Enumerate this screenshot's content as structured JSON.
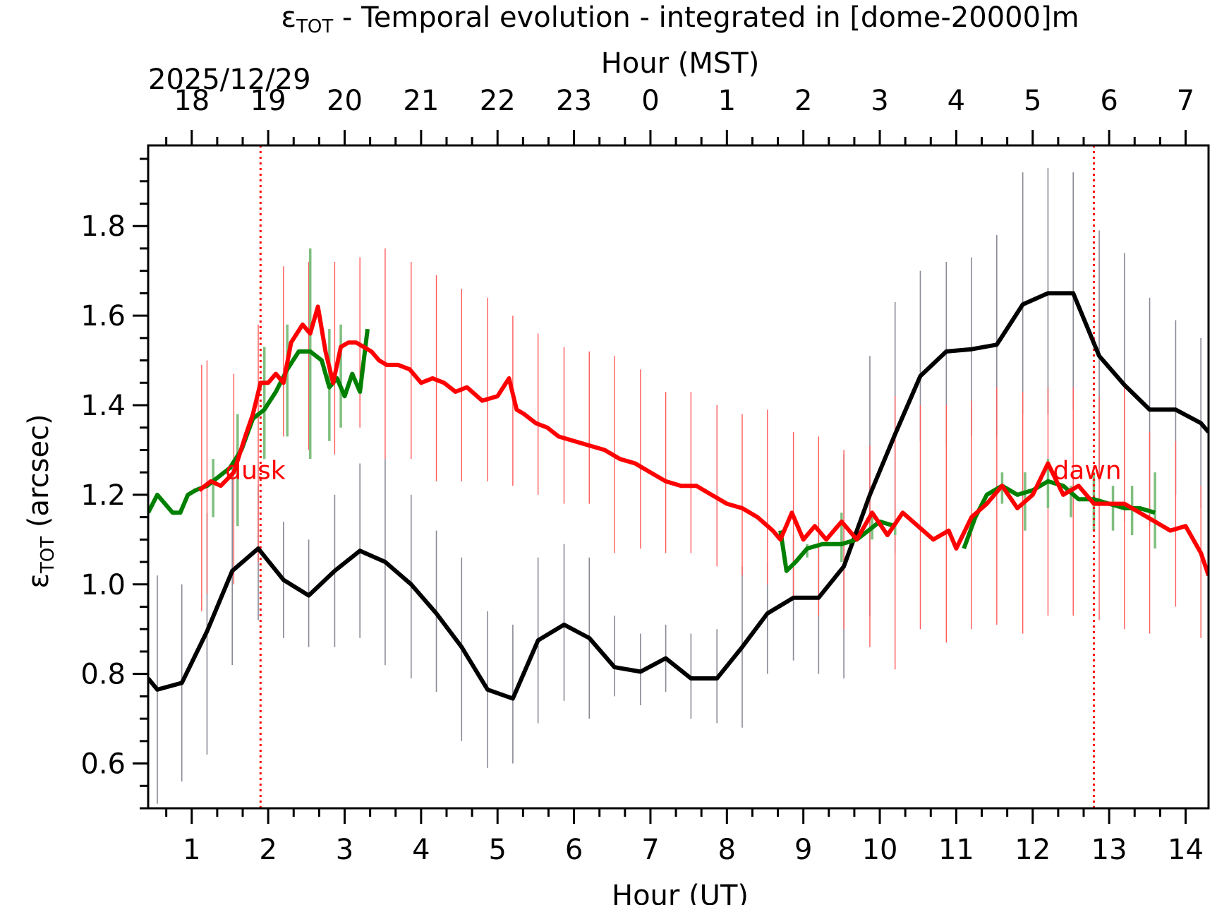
{
  "chart_data": {
    "type": "line",
    "title": {
      "main": "ε",
      "sub": "TOT",
      "rest": " - Temporal evolution - integrated in [dome-20000]m"
    },
    "date_label": "2025/12/29",
    "xlabel": "Hour (UT)",
    "xlabel_top": "Hour (MST)",
    "ylabel": {
      "main": "ε",
      "sub": "TOT",
      "rest": " (arcsec)"
    },
    "xlim": [
      0.43,
      14.3
    ],
    "ylim": [
      0.5,
      1.98
    ],
    "x_ticks": [
      1,
      2,
      3,
      4,
      5,
      6,
      7,
      8,
      9,
      10,
      11,
      12,
      13,
      14
    ],
    "x_tick_labels": [
      "1",
      "2",
      "3",
      "4",
      "5",
      "6",
      "7",
      "8",
      "9",
      "10",
      "11",
      "12",
      "13",
      "14"
    ],
    "top_tick_labels": [
      "18",
      "19",
      "20",
      "21",
      "22",
      "23",
      "0",
      "1",
      "2",
      "3",
      "4",
      "5",
      "6",
      "7"
    ],
    "y_ticks": [
      0.6,
      0.8,
      1.0,
      1.2,
      1.4,
      1.6,
      1.8
    ],
    "y_tick_labels": [
      "0.6",
      "0.8",
      "1.0",
      "1.2",
      "1.4",
      "1.6",
      "1.8"
    ],
    "colors": {
      "black": "#000000",
      "red": "#ff0000",
      "green": "#008000",
      "green_err": "#7fbf7f",
      "red_err": "#ff5a5a",
      "black_err": "#8a8a96"
    },
    "annotations": [
      {
        "text": "dusk",
        "x": 1.9
      },
      {
        "text": "dawn",
        "x": 12.8
      }
    ],
    "series": [
      {
        "name": "black",
        "color": "#000000",
        "x": [
          0.43,
          0.55,
          0.87,
          1.2,
          1.53,
          1.87,
          2.2,
          2.53,
          2.87,
          3.2,
          3.53,
          3.87,
          4.2,
          4.53,
          4.87,
          5.2,
          5.53,
          5.87,
          6.2,
          6.53,
          6.87,
          7.2,
          7.53,
          7.87,
          8.2,
          8.53,
          8.87,
          9.2,
          9.53,
          9.87,
          10.2,
          10.53,
          10.87,
          11.2,
          11.53,
          11.87,
          12.2,
          12.53,
          12.87,
          13.2,
          13.53,
          13.87,
          14.2,
          14.3
        ],
        "values": [
          0.79,
          0.765,
          0.78,
          0.895,
          1.03,
          1.08,
          1.01,
          0.975,
          1.03,
          1.075,
          1.05,
          1.0,
          0.935,
          0.86,
          0.765,
          0.745,
          0.875,
          0.91,
          0.88,
          0.815,
          0.805,
          0.835,
          0.79,
          0.79,
          0.86,
          0.935,
          0.97,
          0.97,
          1.04,
          1.2,
          1.335,
          1.465,
          1.52,
          1.525,
          1.535,
          1.625,
          1.65,
          1.65,
          1.51,
          1.445,
          1.39,
          1.39,
          1.36,
          1.34
        ]
      },
      {
        "name": "red",
        "color": "#ff0000",
        "x": [
          1.1,
          1.25,
          1.38,
          1.55,
          1.7,
          1.8,
          1.9,
          2.0,
          2.1,
          2.2,
          2.3,
          2.45,
          2.55,
          2.65,
          2.75,
          2.85,
          2.95,
          3.05,
          3.15,
          3.25,
          3.35,
          3.45,
          3.55,
          3.7,
          3.85,
          4.0,
          4.15,
          4.3,
          4.45,
          4.6,
          4.8,
          5.0,
          5.15,
          5.25,
          5.35,
          5.5,
          5.65,
          5.8,
          6.0,
          6.2,
          6.4,
          6.6,
          6.8,
          7.0,
          7.2,
          7.4,
          7.6,
          7.8,
          8.0,
          8.2,
          8.4,
          8.6,
          8.7,
          8.85,
          9.0,
          9.15,
          9.3,
          9.5,
          9.7,
          9.9,
          10.1,
          10.3,
          10.5,
          10.7,
          10.9,
          11.0,
          11.2,
          11.4,
          11.6,
          11.8,
          12.0,
          12.2,
          12.4,
          12.6,
          12.8,
          13.0,
          13.2,
          13.4,
          13.6,
          13.8,
          14.0,
          14.2,
          14.3
        ],
        "values": [
          1.21,
          1.23,
          1.22,
          1.25,
          1.33,
          1.38,
          1.45,
          1.45,
          1.47,
          1.45,
          1.54,
          1.58,
          1.56,
          1.62,
          1.52,
          1.45,
          1.53,
          1.54,
          1.54,
          1.53,
          1.52,
          1.5,
          1.49,
          1.49,
          1.48,
          1.45,
          1.46,
          1.45,
          1.43,
          1.44,
          1.41,
          1.42,
          1.46,
          1.39,
          1.38,
          1.36,
          1.35,
          1.33,
          1.32,
          1.31,
          1.3,
          1.28,
          1.27,
          1.25,
          1.23,
          1.22,
          1.22,
          1.2,
          1.18,
          1.17,
          1.15,
          1.12,
          1.1,
          1.16,
          1.1,
          1.13,
          1.1,
          1.14,
          1.1,
          1.16,
          1.11,
          1.16,
          1.13,
          1.1,
          1.12,
          1.08,
          1.15,
          1.18,
          1.22,
          1.17,
          1.2,
          1.27,
          1.2,
          1.22,
          1.18,
          1.18,
          1.18,
          1.16,
          1.14,
          1.12,
          1.13,
          1.07,
          1.02
        ]
      },
      {
        "name": "green",
        "color": "#008000",
        "segments": [
          {
            "x": [
              0.43,
              0.55,
              0.65,
              0.75,
              0.85,
              0.95,
              1.05,
              1.2,
              1.35,
              1.5,
              1.65,
              1.8,
              1.95,
              2.1,
              2.25,
              2.4,
              2.55,
              2.7,
              2.8,
              2.9,
              3.0,
              3.1,
              3.2,
              3.3
            ],
            "values": [
              1.16,
              1.2,
              1.18,
              1.16,
              1.16,
              1.2,
              1.21,
              1.22,
              1.24,
              1.26,
              1.3,
              1.37,
              1.39,
              1.43,
              1.48,
              1.52,
              1.52,
              1.5,
              1.44,
              1.46,
              1.42,
              1.47,
              1.43,
              1.57
            ]
          },
          {
            "x": [
              8.7,
              8.78,
              8.9,
              9.05,
              9.25,
              9.5,
              9.7,
              9.85,
              10.0,
              10.2
            ],
            "values": [
              1.12,
              1.03,
              1.05,
              1.08,
              1.09,
              1.09,
              1.1,
              1.12,
              1.14,
              1.13
            ]
          },
          {
            "x": [
              11.1,
              11.25,
              11.4,
              11.6,
              11.8,
              12.0,
              12.2,
              12.4,
              12.6,
              12.8,
              13.0,
              13.2,
              13.4,
              13.6
            ],
            "values": [
              1.08,
              1.15,
              1.2,
              1.22,
              1.2,
              1.21,
              1.23,
              1.22,
              1.19,
              1.19,
              1.18,
              1.17,
              1.17,
              1.16
            ]
          }
        ]
      }
    ],
    "error_bars": [
      {
        "series": "black",
        "x": [
          0.55,
          0.87,
          1.2,
          1.53,
          1.87,
          2.2,
          2.53,
          2.87,
          3.2,
          3.53,
          3.87,
          4.2,
          4.53,
          4.87,
          5.2,
          5.53,
          5.87,
          6.2,
          6.53,
          6.87,
          7.2,
          7.53,
          7.87,
          8.2,
          8.53,
          8.87,
          9.2,
          9.53,
          9.87,
          10.2,
          10.53,
          10.87,
          11.2,
          11.53,
          11.87,
          12.2,
          12.53,
          12.87,
          13.2,
          13.53,
          13.87,
          14.2
        ],
        "low": [
          0.51,
          0.56,
          0.62,
          0.82,
          0.92,
          0.88,
          0.86,
          0.86,
          0.88,
          0.82,
          0.79,
          0.76,
          0.65,
          0.59,
          0.6,
          0.69,
          0.74,
          0.7,
          0.75,
          0.73,
          0.76,
          0.7,
          0.69,
          0.68,
          0.8,
          0.83,
          0.8,
          0.79,
          0.93,
          1.07,
          1.32,
          1.31,
          1.33,
          1.33,
          1.38,
          1.38,
          1.39,
          1.23,
          1.14,
          1.13,
          1.2,
          1.17
        ],
        "high": [
          1.02,
          1.0,
          1.16,
          1.26,
          1.22,
          1.14,
          1.1,
          1.2,
          1.27,
          1.28,
          1.2,
          1.12,
          1.06,
          0.94,
          0.91,
          1.06,
          1.09,
          1.06,
          0.93,
          0.89,
          0.91,
          0.89,
          0.9,
          1.04,
          1.05,
          1.11,
          1.14,
          1.29,
          1.51,
          1.63,
          1.7,
          1.72,
          1.73,
          1.78,
          1.92,
          1.93,
          1.92,
          1.79,
          1.74,
          1.64,
          1.59,
          1.55
        ]
      },
      {
        "series": "red",
        "x": [
          1.13,
          1.2,
          1.55,
          1.87,
          2.2,
          2.53,
          2.87,
          3.2,
          3.53,
          3.87,
          4.2,
          4.53,
          4.87,
          5.2,
          5.53,
          5.87,
          6.2,
          6.53,
          6.87,
          7.2,
          7.53,
          7.87,
          8.2,
          8.53,
          8.87,
          9.2,
          9.53,
          9.87,
          10.2,
          10.53,
          10.87,
          11.2,
          11.53,
          11.87,
          12.2,
          12.53,
          12.87,
          13.2,
          13.53,
          13.87,
          14.2
        ],
        "low": [
          0.94,
          0.98,
          1.0,
          1.05,
          1.33,
          1.3,
          1.29,
          1.35,
          1.28,
          1.28,
          1.23,
          1.23,
          1.23,
          1.22,
          1.2,
          1.18,
          1.18,
          1.07,
          1.08,
          1.07,
          1.07,
          1.04,
          1.02,
          1.0,
          0.97,
          0.93,
          0.9,
          0.86,
          0.81,
          0.9,
          0.87,
          0.9,
          0.91,
          0.89,
          0.93,
          0.93,
          0.92,
          0.9,
          0.89,
          0.95,
          0.88
        ],
        "high": [
          1.49,
          1.5,
          1.47,
          1.58,
          1.71,
          1.72,
          1.72,
          1.73,
          1.75,
          1.72,
          1.69,
          1.66,
          1.64,
          1.6,
          1.56,
          1.53,
          1.52,
          1.51,
          1.48,
          1.43,
          1.43,
          1.4,
          1.38,
          1.39,
          1.34,
          1.33,
          1.3,
          1.31,
          1.42,
          1.4,
          1.4,
          1.41,
          1.44,
          1.43,
          1.44,
          1.44,
          1.42,
          1.44,
          1.34,
          1.32,
          1.22
        ]
      },
      {
        "series": "green",
        "x": [
          1.28,
          1.6,
          1.95,
          2.25,
          2.55,
          2.8,
          2.95,
          9.05,
          9.5,
          9.9,
          10.2,
          11.6,
          11.9,
          12.2,
          12.5,
          12.8,
          13.05,
          13.3,
          13.6
        ],
        "low": [
          1.15,
          1.13,
          1.28,
          1.33,
          1.28,
          1.32,
          1.35,
          1.06,
          1.05,
          1.1,
          1.11,
          1.18,
          1.12,
          1.17,
          1.15,
          1.12,
          1.12,
          1.11,
          1.08
        ],
        "high": [
          1.28,
          1.38,
          1.53,
          1.58,
          1.75,
          1.57,
          1.58,
          1.09,
          1.16,
          1.15,
          1.14,
          1.25,
          1.25,
          1.28,
          1.22,
          1.25,
          1.22,
          1.22,
          1.25
        ]
      }
    ]
  }
}
